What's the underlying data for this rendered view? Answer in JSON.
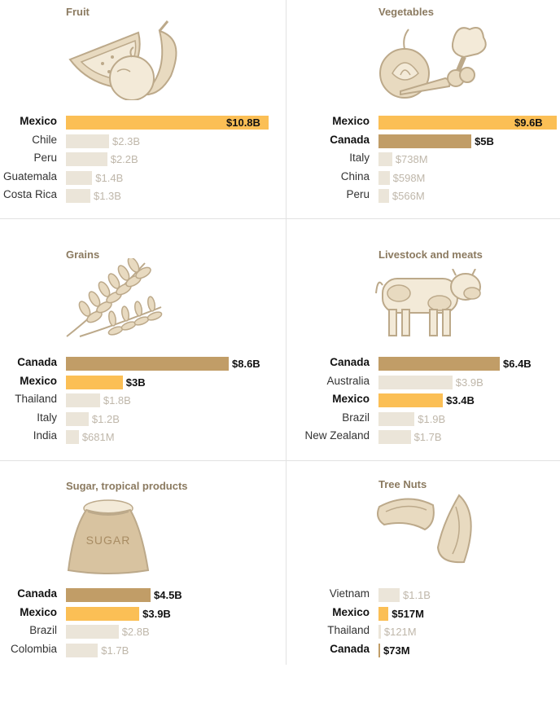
{
  "chart_data": [
    {
      "type": "bar",
      "title": "Fruit",
      "illustration": "fruit-illustration",
      "categories": [
        "Mexico",
        "Chile",
        "Peru",
        "Guatemala",
        "Costa Rica"
      ],
      "values": [
        10.8,
        2.3,
        2.2,
        1.4,
        1.3
      ],
      "value_labels": [
        "$10.8B",
        "$2.3B",
        "$2.2B",
        "$1.4B",
        "$1.3B"
      ],
      "highlight": [
        "mexico",
        "other",
        "other",
        "other",
        "other"
      ]
    },
    {
      "type": "bar",
      "title": "Vegetables",
      "illustration": "vegetables-illustration",
      "categories": [
        "Mexico",
        "Canada",
        "Italy",
        "China",
        "Peru"
      ],
      "values": [
        9.6,
        5,
        0.738,
        0.598,
        0.566
      ],
      "value_labels": [
        "$9.6B",
        "$5B",
        "$738M",
        "$598M",
        "$566M"
      ],
      "highlight": [
        "mexico",
        "canada",
        "other",
        "other",
        "other"
      ]
    },
    {
      "type": "bar",
      "title": "Grains",
      "illustration": "wheat-illustration",
      "categories": [
        "Canada",
        "Mexico",
        "Thailand",
        "Italy",
        "India"
      ],
      "values": [
        8.6,
        3,
        1.8,
        1.2,
        0.681
      ],
      "value_labels": [
        "$8.6B",
        "$3B",
        "$1.8B",
        "$1.2B",
        "$681M"
      ],
      "highlight": [
        "canada",
        "mexico",
        "other",
        "other",
        "other"
      ]
    },
    {
      "type": "bar",
      "title": "Livestock and meats",
      "illustration": "cow-illustration",
      "categories": [
        "Canada",
        "Australia",
        "Mexico",
        "Brazil",
        "New Zealand"
      ],
      "values": [
        6.4,
        3.9,
        3.4,
        1.9,
        1.7
      ],
      "value_labels": [
        "$6.4B",
        "$3.9B",
        "$3.4B",
        "$1.9B",
        "$1.7B"
      ],
      "highlight": [
        "canada",
        "other",
        "mexico",
        "other",
        "other"
      ]
    },
    {
      "type": "bar",
      "title": "Sugar, tropical products",
      "illustration": "sugar-sack-illustration",
      "sack_text": "SUGAR",
      "categories": [
        "Canada",
        "Mexico",
        "Brazil",
        "Colombia"
      ],
      "values": [
        4.5,
        3.9,
        2.8,
        1.7
      ],
      "value_labels": [
        "$4.5B",
        "$3.9B",
        "$2.8B",
        "$1.7B"
      ],
      "highlight": [
        "canada",
        "mexico",
        "other",
        "other"
      ]
    },
    {
      "type": "bar",
      "title": "Tree Nuts",
      "illustration": "nuts-illustration",
      "categories": [
        "Vietnam",
        "Mexico",
        "Thailand",
        "Canada"
      ],
      "values": [
        1.1,
        0.517,
        0.121,
        0.073
      ],
      "value_labels": [
        "$1.1B",
        "$517M",
        "$121M",
        "$73M"
      ],
      "highlight": [
        "other",
        "mexico",
        "other",
        "canada"
      ]
    }
  ],
  "colors": {
    "mexico": "#fbbf55",
    "canada": "#c19d67",
    "other": "#ebe5d9",
    "title": "#8b7a60",
    "muted_value": "#bfb7aa",
    "illustration_fill": "#e8dac0",
    "illustration_stroke": "#bca98a"
  }
}
